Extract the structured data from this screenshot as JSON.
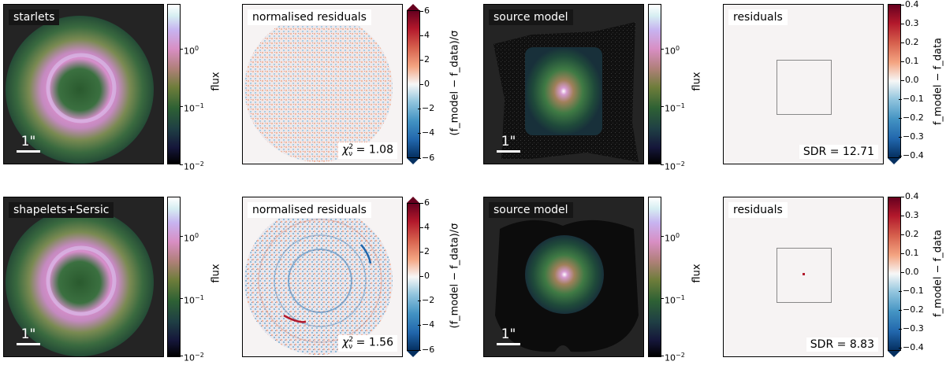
{
  "rows": [
    {
      "lens_label": "starlets",
      "scale_label": "1\"",
      "resid_label": "normalised residuals",
      "chi2_prefix": "χ",
      "chi2_sub": "ν",
      "chi2_sup": "2",
      "chi2_value": "= 1.08",
      "source_label": "source model",
      "source_scale_label": "1\"",
      "src_resid_label": "residuals",
      "sdr_text": "SDR = 12.71"
    },
    {
      "lens_label": "shapelets+Sersic",
      "scale_label": "1\"",
      "resid_label": "normalised residuals",
      "chi2_prefix": "χ",
      "chi2_sub": "ν",
      "chi2_sup": "2",
      "chi2_value": "= 1.56",
      "source_label": "source model",
      "source_scale_label": "1\"",
      "src_resid_label": "residuals",
      "sdr_text": "SDR = 8.83"
    }
  ],
  "colorbars": {
    "flux": {
      "label": "flux",
      "ticks": [
        "10",
        "10",
        "10"
      ],
      "exponents": [
        "0",
        "−1",
        "−2"
      ]
    },
    "norm_resid": {
      "label": "(f_model − f_data)/σ",
      "ticks": [
        "6",
        "4",
        "2",
        "0",
        "−2",
        "−4",
        "−6"
      ]
    },
    "resid": {
      "label": "f_model − f_data",
      "ticks": [
        "0.4",
        "0.3",
        "0.2",
        "0.1",
        "0.0",
        "−0.1",
        "−0.2",
        "−0.3",
        "−0.4"
      ]
    }
  },
  "colors": {
    "panel_dark": "#242424",
    "residual_bg": "#f6f3f3",
    "box_outline": "#888888"
  }
}
